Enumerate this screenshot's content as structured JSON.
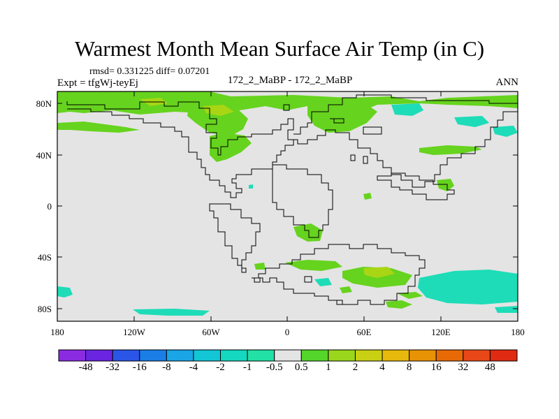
{
  "title": "Warmest Month Mean Surface Air Temp (in C)",
  "stats": "rmsd= 0.331225 diff= 0.07201",
  "left_label": "Expt = tfgWj-teyEj",
  "center_label": "172_2_MaBP - 172_2_MaBP",
  "right_label": "ANN",
  "lat_ticks": [
    "80N",
    "40N",
    "0",
    "40S",
    "80S"
  ],
  "lon_ticks": [
    "180",
    "120W",
    "60W",
    "0",
    "60E",
    "120E",
    "180"
  ],
  "colorbar": {
    "labels": [
      "-48",
      "-32",
      "-16",
      "-8",
      "-4",
      "-2",
      "-1",
      "-0.5",
      "0.5",
      "1",
      "2",
      "4",
      "8",
      "16",
      "32",
      "48"
    ],
    "colors": [
      "#8a2be2",
      "#6a25e0",
      "#2a55e6",
      "#1a7ee6",
      "#1aa5e6",
      "#12c6d6",
      "#14d8c0",
      "#22e0a6",
      "#e4e4e4",
      "#55d62a",
      "#9ad61c",
      "#c9d014",
      "#e6b90c",
      "#e89206",
      "#e86a06",
      "#e84818",
      "#e02a12"
    ]
  },
  "legend_colors": {
    "positive": "#66d31e",
    "positive_strong": "#a8d614",
    "negative": "#1edcb8",
    "background": "#e4e4e4",
    "coast": "#000000"
  }
}
